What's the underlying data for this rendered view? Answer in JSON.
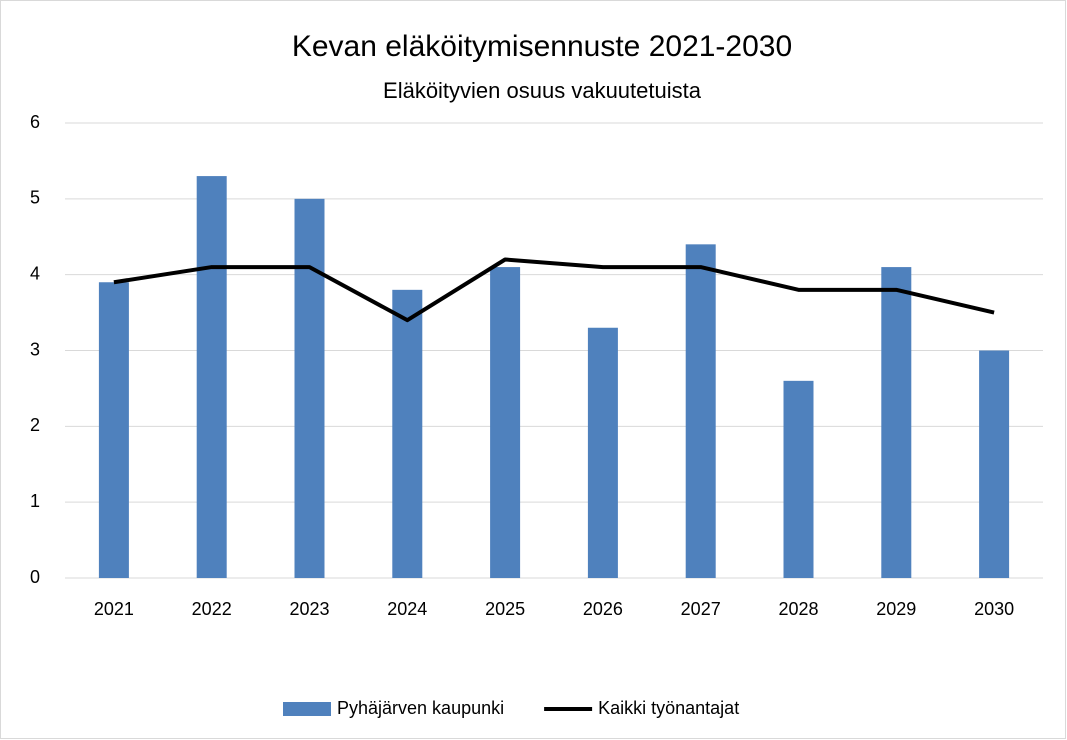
{
  "chart_data": {
    "type": "bar",
    "title": "Kevan eläköitymisennuste 2021-2030",
    "subtitle": "Eläköityvien osuus vakuutetuista",
    "categories": [
      "2021",
      "2022",
      "2023",
      "2024",
      "2025",
      "2026",
      "2027",
      "2028",
      "2029",
      "2030"
    ],
    "series": [
      {
        "name": "Pyhäjärven kaupunki",
        "type": "bar",
        "color": "#4f81bd",
        "values": [
          3.9,
          5.3,
          5.0,
          3.8,
          4.1,
          3.3,
          4.4,
          2.6,
          4.1,
          3.0
        ]
      },
      {
        "name": "Kaikki työnantajat",
        "type": "line",
        "color": "#000000",
        "values": [
          3.9,
          4.1,
          4.1,
          3.4,
          4.2,
          4.1,
          4.1,
          3.8,
          3.8,
          3.5
        ]
      }
    ],
    "ylim": [
      0,
      6
    ],
    "yticks": [
      0,
      1,
      2,
      3,
      4,
      5,
      6
    ],
    "grid": true,
    "legend": "bottom"
  }
}
